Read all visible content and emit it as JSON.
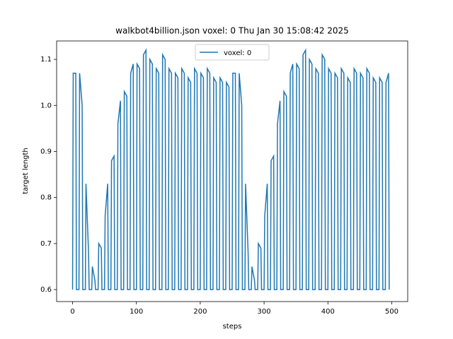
{
  "chart_data": {
    "type": "line",
    "title": "walkbot4billion.json voxel: 0 Thu Jan 30 15:08:42 2025",
    "x_label": "steps",
    "y_label": "target length",
    "x": [
      0,
      1,
      5,
      6,
      10,
      11,
      15,
      16,
      20,
      21,
      25,
      26,
      30,
      31,
      35,
      36,
      40,
      41,
      45,
      46,
      50,
      51,
      55,
      56,
      60,
      61,
      65,
      66,
      70,
      71,
      75,
      76,
      80,
      81,
      85,
      86,
      90,
      91,
      95,
      96,
      100,
      101,
      105,
      106,
      110,
      111,
      115,
      116,
      120,
      121,
      125,
      126,
      130,
      131,
      135,
      136,
      140,
      141,
      145,
      146,
      150,
      151,
      155,
      156,
      160,
      161,
      165,
      166,
      170,
      171,
      175,
      176,
      180,
      181,
      185,
      186,
      190,
      191,
      195,
      196,
      200,
      201,
      205,
      206,
      210,
      211,
      215,
      216,
      220,
      221,
      225,
      226,
      230,
      231,
      235,
      236,
      240,
      241,
      245,
      246,
      250,
      251,
      255,
      256,
      260,
      261,
      265,
      266,
      270,
      271,
      275,
      276,
      280,
      281,
      285,
      286,
      290,
      291,
      295,
      296,
      300,
      301,
      305,
      306,
      310,
      311,
      315,
      316,
      320,
      321,
      325,
      326,
      330,
      331,
      335,
      336,
      340,
      341,
      345,
      346,
      350,
      351,
      355,
      356,
      360,
      361,
      365,
      366,
      370,
      371,
      375,
      376,
      380,
      381,
      385,
      386,
      390,
      391,
      395,
      396,
      400,
      401,
      405,
      406,
      410,
      411,
      415,
      416,
      420,
      421,
      425,
      426,
      430,
      431,
      435,
      436,
      440,
      441,
      445,
      446,
      450,
      451,
      455,
      456,
      460,
      461,
      465,
      466,
      470,
      471,
      475,
      476,
      480,
      481,
      485,
      486,
      490,
      491,
      495,
      496
    ],
    "series": [
      {
        "name": "voxel: 0",
        "color": "#1f77b4",
        "values": [
          0.6,
          1.07,
          1.07,
          0.6,
          0.6,
          1.07,
          1.0,
          0.6,
          0.6,
          0.83,
          0.68,
          0.6,
          0.6,
          0.65,
          0.62,
          0.6,
          0.6,
          0.7,
          0.69,
          0.6,
          0.6,
          0.76,
          0.83,
          0.6,
          0.6,
          0.88,
          0.89,
          0.6,
          0.6,
          0.96,
          1.01,
          0.6,
          0.6,
          1.03,
          1.02,
          0.6,
          0.6,
          1.07,
          1.09,
          0.6,
          0.6,
          1.09,
          1.08,
          0.6,
          0.6,
          1.11,
          1.12,
          0.6,
          0.6,
          1.1,
          1.09,
          0.6,
          0.6,
          1.08,
          1.07,
          0.6,
          0.6,
          1.11,
          1.1,
          0.6,
          0.6,
          1.08,
          1.07,
          0.6,
          0.6,
          1.07,
          1.06,
          0.6,
          0.6,
          1.08,
          1.07,
          0.6,
          0.6,
          1.06,
          1.05,
          0.6,
          0.6,
          1.08,
          1.07,
          0.6,
          0.6,
          1.07,
          1.06,
          0.6,
          0.6,
          1.08,
          1.07,
          0.6,
          0.6,
          1.06,
          1.05,
          0.6,
          0.6,
          1.06,
          1.05,
          0.6,
          0.6,
          1.05,
          1.04,
          0.6,
          0.6,
          1.07,
          1.07,
          0.6,
          0.6,
          1.07,
          1.0,
          0.6,
          0.6,
          0.83,
          0.68,
          0.6,
          0.6,
          0.65,
          0.62,
          0.6,
          0.6,
          0.7,
          0.69,
          0.6,
          0.6,
          0.76,
          0.83,
          0.6,
          0.6,
          0.88,
          0.89,
          0.6,
          0.6,
          0.96,
          1.01,
          0.6,
          0.6,
          1.03,
          1.02,
          0.6,
          0.6,
          1.07,
          1.09,
          0.6,
          0.6,
          1.09,
          1.08,
          0.6,
          0.6,
          1.11,
          1.12,
          0.6,
          0.6,
          1.1,
          1.09,
          0.6,
          0.6,
          1.08,
          1.07,
          0.6,
          0.6,
          1.11,
          1.1,
          0.6,
          0.6,
          1.08,
          1.07,
          0.6,
          0.6,
          1.07,
          1.06,
          0.6,
          0.6,
          1.08,
          1.07,
          0.6,
          0.6,
          1.06,
          1.05,
          0.6,
          0.6,
          1.08,
          1.07,
          0.6,
          0.6,
          1.07,
          1.06,
          0.6,
          0.6,
          1.08,
          1.07,
          0.6,
          0.6,
          1.06,
          1.05,
          0.6,
          0.6,
          1.06,
          1.05,
          0.6,
          0.6,
          1.05,
          1.07,
          0.6
        ]
      }
    ],
    "xlim": [
      -25,
      525
    ],
    "ylim": [
      0.574,
      1.14
    ],
    "xticks": [
      0,
      100,
      200,
      300,
      400,
      500
    ],
    "yticks": [
      0.6,
      0.7,
      0.8,
      0.9,
      {
        "value": 1.0,
        "label": "1.0"
      },
      1.1
    ],
    "legend": "upper center"
  }
}
